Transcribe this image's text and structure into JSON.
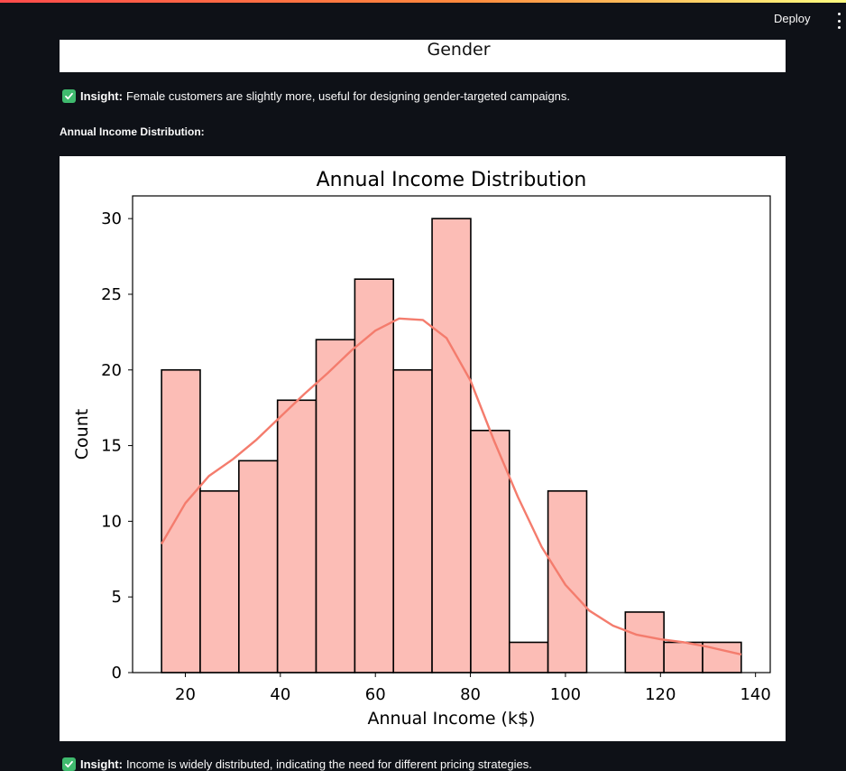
{
  "header": {
    "deploy_label": "Deploy"
  },
  "gender_chart": {
    "title": "Gender"
  },
  "insight_gender": {
    "prefix": "Insight:",
    "text": "Female customers are slightly more, useful for designing gender-targeted campaigns."
  },
  "section": {
    "label": "Annual Income Distribution:"
  },
  "insight_income": {
    "prefix": "Insight:",
    "text": "Income is widely distributed, indicating the need for different pricing strategies."
  },
  "colors": {
    "background": "#0e1117",
    "bar_fill": "#fcbdb6",
    "kde_line": "#f47c6d",
    "check": "#3fba6e"
  },
  "chart_data": {
    "type": "bar",
    "title": "Annual Income Distribution",
    "xlabel": "Annual Income (k$)",
    "ylabel": "Count",
    "bin_edges": [
      15,
      23.13,
      31.27,
      39.4,
      47.53,
      55.67,
      63.8,
      71.93,
      80.07,
      88.2,
      96.33,
      104.47,
      112.6,
      120.73,
      128.87,
      137
    ],
    "values": [
      20,
      12,
      14,
      18,
      22,
      26,
      20,
      30,
      16,
      2,
      12,
      0,
      4,
      2,
      2
    ],
    "xlim": [
      8.9,
      143.1
    ],
    "ylim": [
      0,
      31.5
    ],
    "xticks": [
      20,
      40,
      60,
      80,
      100,
      120,
      140
    ],
    "yticks": [
      0,
      5,
      10,
      15,
      20,
      25,
      30
    ],
    "kde": {
      "x": [
        15,
        20,
        25,
        30,
        35,
        40,
        45,
        50,
        55,
        60,
        65,
        70,
        75,
        80,
        85,
        90,
        95,
        100,
        105,
        110,
        115,
        120,
        125,
        130,
        137
      ],
      "y": [
        8.5,
        11.2,
        13.0,
        14.1,
        15.4,
        16.9,
        18.4,
        19.8,
        21.3,
        22.6,
        23.4,
        23.3,
        22.1,
        19.3,
        15.3,
        11.6,
        8.3,
        5.8,
        4.1,
        3.1,
        2.5,
        2.2,
        2.0,
        1.7,
        1.2
      ]
    },
    "grid": false,
    "legend": "none"
  }
}
